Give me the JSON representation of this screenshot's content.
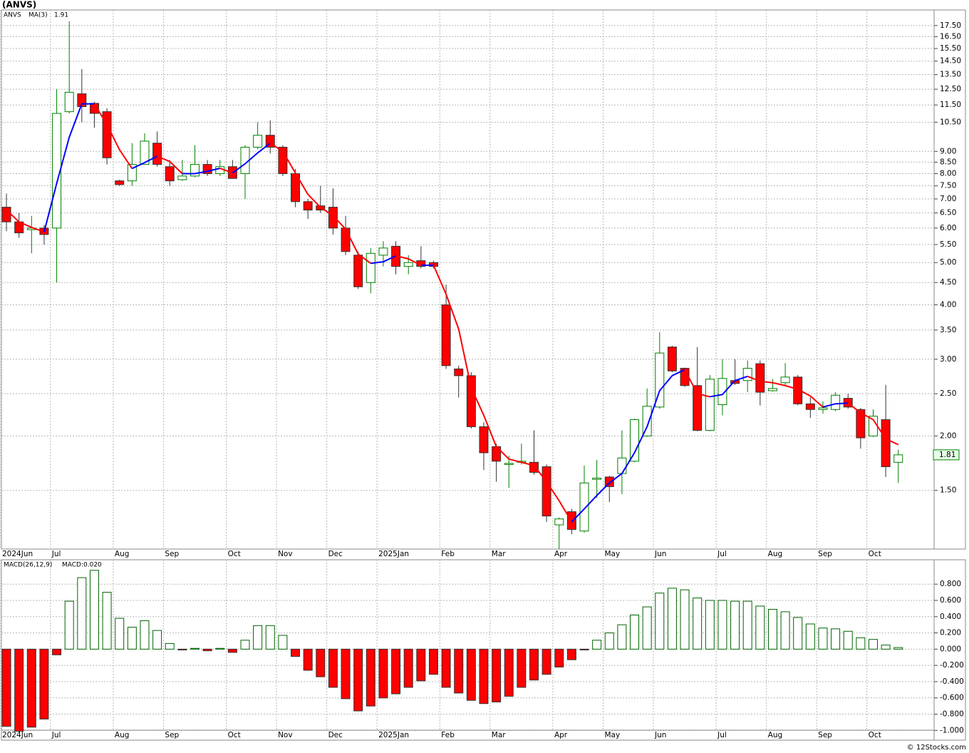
{
  "footer": "© 12Stocks.com",
  "chart_data": [
    {
      "type": "candlestick",
      "title": "(ANVS)",
      "log_scale": true,
      "grid": true,
      "categories": [
        null,
        null,
        null,
        null,
        null,
        null,
        null,
        null,
        null,
        null,
        null,
        null,
        null,
        null,
        null,
        null,
        null,
        null,
        null,
        null,
        null,
        null,
        null,
        null,
        null,
        null,
        null,
        null,
        null,
        null,
        null,
        null,
        null,
        null,
        null,
        null,
        null,
        null,
        null,
        null,
        null,
        null,
        null,
        null,
        null,
        null,
        null,
        null,
        null,
        null,
        null,
        null,
        null,
        null,
        null,
        null,
        null,
        null,
        null,
        null,
        null,
        null,
        null,
        null,
        null,
        null,
        null,
        null,
        null,
        null,
        null,
        null
      ],
      "xlim": [
        -0.4,
        73.85
      ],
      "xticks": [
        {
          "value": -0.5,
          "label": "2024Jun"
        },
        {
          "value": 3.5,
          "label": "Jul"
        },
        {
          "value": 8.5,
          "label": "Aug"
        },
        {
          "value": 12.5,
          "label": "Sep"
        },
        {
          "value": 17.5,
          "label": "Oct"
        },
        {
          "value": 21.5,
          "label": "Nov"
        },
        {
          "value": 25.5,
          "label": "Dec"
        },
        {
          "value": 29.5,
          "label": "2025Jan"
        },
        {
          "value": 34.5,
          "label": "Feb"
        },
        {
          "value": 38.5,
          "label": "Mar"
        },
        {
          "value": 43.5,
          "label": "Apr"
        },
        {
          "value": 47.5,
          "label": "May"
        },
        {
          "value": 51.5,
          "label": "Jun"
        },
        {
          "value": 56.5,
          "label": "Jul"
        },
        {
          "value": 60.5,
          "label": "Aug"
        },
        {
          "value": 64.5,
          "label": "Sep"
        },
        {
          "value": 68.5,
          "label": "Oct"
        }
      ],
      "ylim": [
        1.1,
        19.0
      ],
      "yticks": [
        {
          "value": 1.5,
          "label": "1.50"
        },
        {
          "value": 2,
          "label": "2.00"
        },
        {
          "value": 2.5,
          "label": "2.50"
        },
        {
          "value": 3,
          "label": "3.00"
        },
        {
          "value": 3.5,
          "label": "3.50"
        },
        {
          "value": 4,
          "label": "4.00"
        },
        {
          "value": 4.5,
          "label": "4.50"
        },
        {
          "value": 5,
          "label": "5.00"
        },
        {
          "value": 5.5,
          "label": "5.50"
        },
        {
          "value": 6,
          "label": "6.00"
        },
        {
          "value": 6.5,
          "label": "6.50"
        },
        {
          "value": 7,
          "label": "7.00"
        },
        {
          "value": 7.5,
          "label": "7.50"
        },
        {
          "value": 8,
          "label": "8.00"
        },
        {
          "value": 8.5,
          "label": "8.50"
        },
        {
          "value": 9,
          "label": "9.00"
        },
        {
          "value": 10.5,
          "label": "10.50"
        },
        {
          "value": 11.5,
          "label": "11.50"
        },
        {
          "value": 12.5,
          "label": "12.50"
        },
        {
          "value": 13.5,
          "label": "13.50"
        },
        {
          "value": 14.5,
          "label": "14.50"
        },
        {
          "value": 15.5,
          "label": "15.50"
        },
        {
          "value": 16.5,
          "label": "16.50"
        },
        {
          "value": 17.5,
          "label": "17.50"
        }
      ],
      "series": [
        {
          "name": "ANVS",
          "color": "#008000",
          "up_color": "#ffffff",
          "down_color": "#ff0000",
          "open": [
            6.7,
            6.2,
            5.95,
            6.0,
            6.0,
            11.1,
            12.2,
            11.6,
            11.1,
            7.7,
            7.7,
            8.4,
            9.4,
            8.3,
            7.75,
            7.9,
            8.4,
            8.0,
            8.3,
            8.0,
            9.2,
            9.8,
            9.2,
            8.0,
            6.9,
            6.75,
            6.7,
            6.0,
            5.2,
            4.5,
            5.2,
            5.45,
            4.9,
            5.05,
            5.0,
            4.0,
            2.85,
            2.75,
            2.1,
            1.89,
            1.72,
            1.74,
            1.74,
            1.7,
            1.25,
            1.34,
            1.21,
            1.59,
            1.61,
            1.64,
            1.75,
            2.0,
            2.33,
            3.2,
            2.86,
            2.61,
            2.06,
            2.36,
            2.68,
            2.68,
            2.93,
            2.54,
            2.65,
            2.73,
            2.37,
            2.3,
            2.3,
            2.44,
            2.3,
            2.0,
            2.18,
            1.74
          ],
          "high": [
            7.2,
            6.5,
            6.4,
            6.1,
            12.5,
            17.9,
            13.9,
            11.7,
            11.3,
            7.75,
            9.4,
            9.9,
            10.0,
            8.6,
            8.6,
            9.3,
            8.6,
            8.6,
            8.6,
            9.3,
            10.5,
            10.6,
            9.3,
            8.2,
            7.0,
            7.5,
            7.4,
            6.4,
            5.3,
            5.4,
            5.6,
            5.6,
            5.2,
            5.45,
            5.05,
            4.45,
            2.9,
            2.8,
            2.15,
            1.92,
            1.8,
            1.92,
            2.06,
            1.72,
            1.3,
            1.36,
            1.71,
            1.76,
            1.62,
            2.06,
            2.19,
            2.57,
            3.46,
            3.22,
            2.87,
            3.2,
            2.76,
            3.0,
            3.0,
            2.98,
            2.98,
            2.7,
            2.94,
            2.76,
            2.45,
            2.4,
            2.52,
            2.5,
            2.32,
            2.3,
            2.62,
            1.86
          ],
          "low": [
            5.9,
            5.7,
            5.25,
            5.5,
            4.5,
            11.0,
            10.5,
            10.2,
            8.4,
            7.5,
            7.5,
            8.4,
            8.3,
            7.5,
            7.7,
            7.85,
            7.9,
            7.9,
            7.8,
            7.0,
            9.1,
            8.9,
            7.9,
            6.7,
            6.3,
            6.5,
            5.8,
            5.2,
            4.35,
            4.25,
            4.9,
            4.7,
            4.7,
            4.85,
            4.85,
            2.85,
            2.45,
            2.08,
            1.67,
            1.57,
            1.52,
            1.72,
            1.63,
            1.27,
            1.1,
            1.19,
            1.2,
            1.44,
            1.41,
            1.47,
            1.74,
            1.99,
            2.31,
            2.8,
            2.59,
            2.05,
            2.05,
            2.23,
            2.62,
            2.52,
            2.35,
            2.53,
            2.6,
            2.35,
            2.2,
            2.25,
            2.28,
            2.31,
            1.87,
            1.99,
            1.61,
            1.56
          ],
          "close": [
            6.2,
            5.85,
            6.0,
            5.8,
            11.0,
            12.3,
            11.4,
            11.0,
            8.7,
            7.55,
            8.4,
            9.5,
            8.4,
            7.7,
            7.9,
            8.4,
            8.0,
            8.3,
            7.8,
            9.2,
            9.8,
            9.2,
            8.0,
            6.9,
            6.6,
            6.6,
            6.0,
            5.3,
            4.4,
            5.25,
            5.4,
            4.9,
            5.0,
            4.9,
            4.9,
            2.9,
            2.75,
            2.1,
            1.83,
            1.75,
            1.73,
            1.75,
            1.65,
            1.31,
            1.29,
            1.22,
            1.56,
            1.6,
            1.53,
            1.78,
            2.18,
            2.34,
            3.1,
            2.82,
            2.61,
            2.06,
            2.7,
            2.71,
            2.64,
            2.86,
            2.52,
            2.57,
            2.73,
            2.37,
            2.3,
            2.32,
            2.48,
            2.33,
            1.98,
            2.22,
            1.7,
            1.81
          ]
        },
        {
          "name": "MA(3)",
          "type": "line",
          "color": "#0000ff",
          "falling_color": "#ff0000",
          "values": [
            6.6,
            6.2,
            6.02,
            5.88,
            7.6,
            9.7,
            11.57,
            11.57,
            10.37,
            9.08,
            8.22,
            8.48,
            8.77,
            8.53,
            8.0,
            8.0,
            8.1,
            8.23,
            8.03,
            8.43,
            8.93,
            9.4,
            9.0,
            8.03,
            7.17,
            6.7,
            6.4,
            5.97,
            5.23,
            4.98,
            5.02,
            5.18,
            5.1,
            4.93,
            4.93,
            4.23,
            3.52,
            2.58,
            2.23,
            1.89,
            1.77,
            1.74,
            1.71,
            1.57,
            1.42,
            1.27,
            1.36,
            1.46,
            1.56,
            1.64,
            1.83,
            2.1,
            2.54,
            2.75,
            2.84,
            2.5,
            2.46,
            2.49,
            2.68,
            2.74,
            2.67,
            2.65,
            2.61,
            2.56,
            2.47,
            2.33,
            2.37,
            2.38,
            2.26,
            2.18,
            1.97,
            1.91
          ]
        }
      ]
    },
    {
      "type": "bar",
      "title": "MACD(26,12,9)",
      "subtitle": "MACD:0.020",
      "grid": true,
      "categories": [
        null,
        null,
        null,
        null,
        null,
        null,
        null,
        null,
        null,
        null,
        null,
        null,
        null,
        null,
        null,
        null,
        null,
        null,
        null,
        null,
        null,
        null,
        null,
        null,
        null,
        null,
        null,
        null,
        null,
        null,
        null,
        null,
        null,
        null,
        null,
        null,
        null,
        null,
        null,
        null,
        null,
        null,
        null,
        null,
        null,
        null,
        null,
        null,
        null,
        null,
        null,
        null,
        null,
        null,
        null,
        null,
        null,
        null,
        null,
        null,
        null,
        null,
        null,
        null,
        null,
        null,
        null,
        null,
        null,
        null,
        null,
        null
      ],
      "xlim": [
        -0.4,
        73.85
      ],
      "xticks": [
        {
          "value": -0.5,
          "label": "2024Jun"
        },
        {
          "value": 3.5,
          "label": "Jul"
        },
        {
          "value": 8.5,
          "label": "Aug"
        },
        {
          "value": 12.5,
          "label": "Sep"
        },
        {
          "value": 17.5,
          "label": "Oct"
        },
        {
          "value": 21.5,
          "label": "Nov"
        },
        {
          "value": 25.5,
          "label": "Dec"
        },
        {
          "value": 29.5,
          "label": "2025Jan"
        },
        {
          "value": 34.5,
          "label": "Feb"
        },
        {
          "value": 38.5,
          "label": "Mar"
        },
        {
          "value": 43.5,
          "label": "Apr"
        },
        {
          "value": 47.5,
          "label": "May"
        },
        {
          "value": 51.5,
          "label": "Jun"
        },
        {
          "value": 56.5,
          "label": "Jul"
        },
        {
          "value": 60.5,
          "label": "Aug"
        },
        {
          "value": 64.5,
          "label": "Sep"
        },
        {
          "value": 68.5,
          "label": "Oct"
        }
      ],
      "ylim": [
        -1.12,
        1.1
      ],
      "yticks": [
        {
          "value": 0.8,
          "label": "0.800"
        },
        {
          "value": 0.6,
          "label": "0.600"
        },
        {
          "value": 0.4,
          "label": "0.400"
        },
        {
          "value": 0.2,
          "label": "0.200"
        },
        {
          "value": 0,
          "label": "0.000"
        },
        {
          "value": -0.2,
          "label": "-0.200"
        },
        {
          "value": -0.4,
          "label": "-0.400"
        },
        {
          "value": -0.6,
          "label": "-0.600"
        },
        {
          "value": -0.8,
          "label": "-0.800"
        },
        {
          "value": -1,
          "label": "-1.000"
        }
      ],
      "color": "#006400",
      "negative_color": "#ff0000",
      "values": [
        -0.95,
        -1.01,
        -0.96,
        -0.86,
        -0.07,
        0.59,
        0.88,
        0.97,
        0.7,
        0.38,
        0.27,
        0.35,
        0.23,
        0.07,
        -0.01,
        0.01,
        -0.02,
        0.01,
        -0.04,
        0.11,
        0.29,
        0.29,
        0.17,
        -0.09,
        -0.26,
        -0.34,
        -0.47,
        -0.61,
        -0.76,
        -0.7,
        -0.6,
        -0.55,
        -0.47,
        -0.39,
        -0.31,
        -0.47,
        -0.54,
        -0.63,
        -0.67,
        -0.65,
        -0.58,
        -0.47,
        -0.38,
        -0.31,
        -0.22,
        -0.13,
        -0.01,
        0.11,
        0.2,
        0.3,
        0.42,
        0.52,
        0.69,
        0.75,
        0.73,
        0.63,
        0.6,
        0.6,
        0.59,
        0.59,
        0.53,
        0.49,
        0.46,
        0.39,
        0.31,
        0.26,
        0.25,
        0.22,
        0.14,
        0.12,
        0.05,
        0.02
      ]
    }
  ]
}
